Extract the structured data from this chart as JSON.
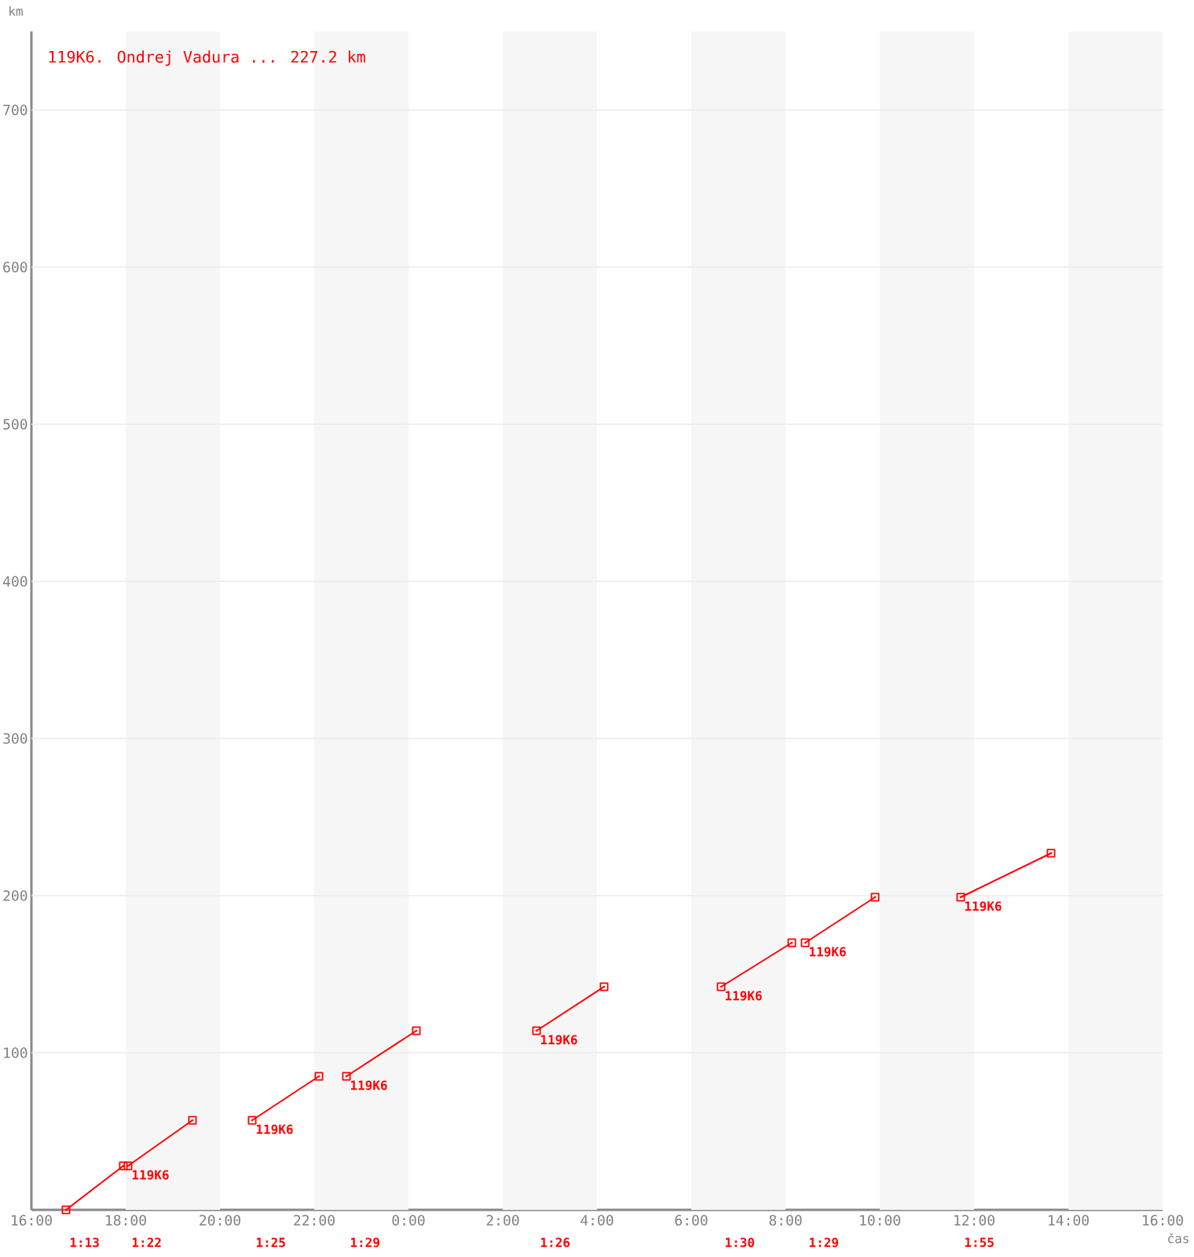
{
  "chart_data": {
    "type": "line",
    "xlabel": "čas",
    "ylabel": "km",
    "series": [
      {
        "name": "119K6. Ondrej Vadura ... 227.2 km",
        "color": "#ff0000",
        "x": [
          "2000-01-01T16:44",
          "2000-01-01T17:57",
          null,
          "2000-01-01T18:03",
          "2000-01-01T19:25",
          null,
          "2000-01-01T20:41",
          "2000-01-01T22:06",
          null,
          "2000-01-01T22:41",
          "2000-01-02T00:10",
          null,
          "2000-01-02T02:43",
          "2000-01-02T04:09",
          null,
          "2000-01-02T06:38",
          "2000-01-02T08:08",
          null,
          "2000-01-02T08:25",
          "2000-01-02T09:54",
          null,
          "2000-01-02T11:43",
          "2000-01-02T13:38"
        ],
        "values": [
          0,
          28,
          null,
          28,
          57,
          null,
          57,
          85,
          null,
          85,
          114,
          null,
          114,
          142,
          null,
          142,
          170,
          null,
          170,
          199,
          null,
          199,
          227
        ]
      }
    ],
    "xlim": [
      "2000-01-01T16:00",
      "2000-01-02T16:00"
    ],
    "xticks": [
      {
        "value": "2000-01-01T16:00",
        "label": "16:00"
      },
      {
        "value": "2000-01-01T18:00",
        "label": "18:00"
      },
      {
        "value": "2000-01-01T20:00",
        "label": "20:00"
      },
      {
        "value": "2000-01-01T22:00",
        "label": "22:00"
      },
      {
        "value": "2000-01-02T00:00",
        "label": "0:00"
      },
      {
        "value": "2000-01-02T02:00",
        "label": "2:00"
      },
      {
        "value": "2000-01-02T04:00",
        "label": "4:00"
      },
      {
        "value": "2000-01-02T06:00",
        "label": "6:00"
      },
      {
        "value": "2000-01-02T08:00",
        "label": "8:00"
      },
      {
        "value": "2000-01-02T10:00",
        "label": "10:00"
      },
      {
        "value": "2000-01-02T12:00",
        "label": "12:00"
      },
      {
        "value": "2000-01-02T14:00",
        "label": "14:00"
      },
      {
        "value": "2000-01-02T16:00",
        "label": "16:00"
      }
    ],
    "ylim": [
      0,
      750
    ],
    "yticks": [
      100,
      200,
      300,
      400,
      500,
      600,
      700
    ],
    "grid": "y",
    "legend": "top left",
    "marker": "square",
    "line_style": "solid",
    "bands": [
      {
        "axis": "x",
        "from": "2000-01-01T18:00",
        "to": "2000-01-01T20:00",
        "color": "#f6f6f6"
      },
      {
        "axis": "x",
        "from": "2000-01-01T22:00",
        "to": "2000-01-02T00:00",
        "color": "#f6f6f6"
      },
      {
        "axis": "x",
        "from": "2000-01-02T02:00",
        "to": "2000-01-02T04:00",
        "color": "#f6f6f6"
      },
      {
        "axis": "x",
        "from": "2000-01-02T06:00",
        "to": "2000-01-02T08:00",
        "color": "#f6f6f6"
      },
      {
        "axis": "x",
        "from": "2000-01-02T10:00",
        "to": "2000-01-02T12:00",
        "color": "#f6f6f6"
      },
      {
        "axis": "x",
        "from": "2000-01-02T14:00",
        "to": "2000-01-02T16:00",
        "color": "#f6f6f6"
      }
    ],
    "annotations": [
      {
        "text": "119K6",
        "x": "2000-01-01T18:03",
        "y": 28
      },
      {
        "text": "119K6",
        "x": "2000-01-01T20:41",
        "y": 57
      },
      {
        "text": "119K6",
        "x": "2000-01-01T22:41",
        "y": 85
      },
      {
        "text": "119K6",
        "x": "2000-01-02T02:43",
        "y": 114
      },
      {
        "text": "119K6",
        "x": "2000-01-02T06:38",
        "y": 142
      },
      {
        "text": "119K6",
        "x": "2000-01-02T08:25",
        "y": 170
      },
      {
        "text": "119K6",
        "x": "2000-01-02T11:43",
        "y": 199
      },
      "1:13",
      "1:22",
      "1:25",
      "1:29",
      "1:26",
      "1:30",
      "1:29",
      "1:55"
    ]
  }
}
